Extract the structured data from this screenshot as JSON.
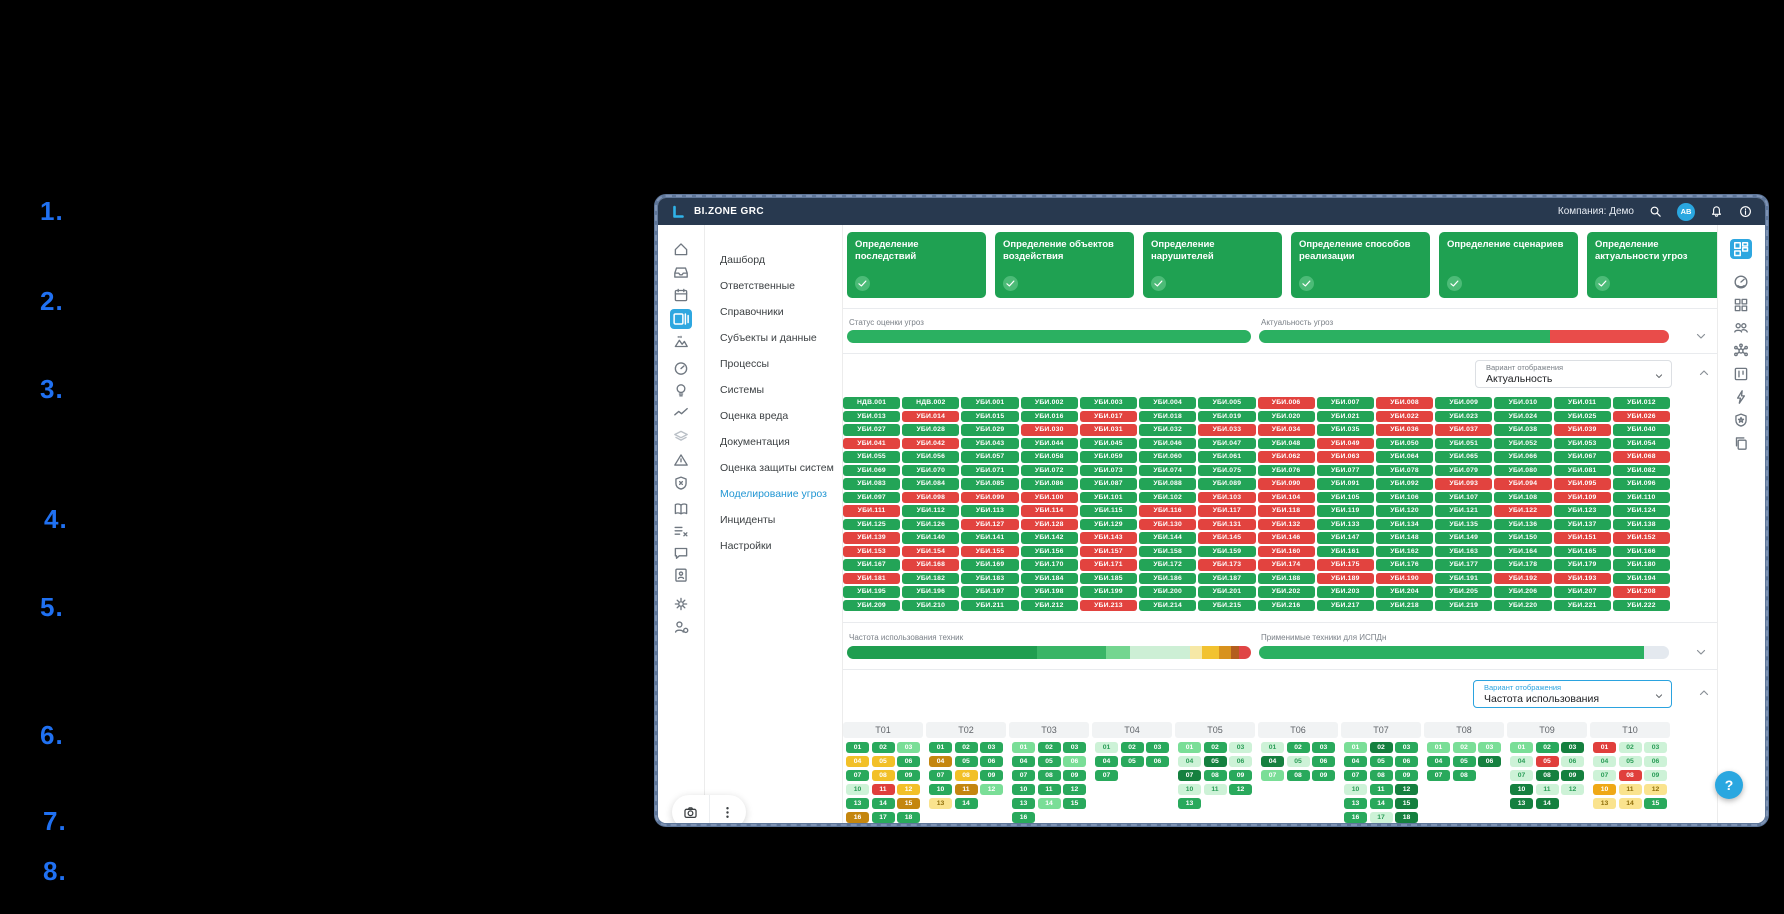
{
  "annotations": {
    "color": "#2071f2",
    "items": [
      "1.",
      "2.",
      "3.",
      "4.",
      "5.",
      "6.",
      "7.",
      "8."
    ]
  },
  "header": {
    "app_title": "BI.ZONE GRC",
    "company": "Компания: Демо",
    "avatar_initials": "AB",
    "icons": [
      "search",
      "avatar",
      "bell",
      "info"
    ]
  },
  "left_rail": {
    "active": "registry",
    "icons": [
      "home",
      "inbox",
      "calendar",
      "registry",
      "landscape",
      "gauge",
      "idea",
      "trend",
      "layers",
      "hazard",
      "shield-x",
      "book",
      "checklist",
      "chat",
      "report",
      "settings",
      "user-settings"
    ]
  },
  "right_rail": {
    "active": "dashboard",
    "icons": [
      "dashboard",
      "speed",
      "apps",
      "team",
      "network",
      "kanban",
      "lightning",
      "shield-star",
      "copy"
    ]
  },
  "nav": {
    "active": "Моделирование угроз",
    "items": [
      "Дашборд",
      "Ответственные",
      "Справочники",
      "Субъекты и данные",
      "Процессы",
      "Системы",
      "Оценка вреда",
      "Документация",
      "Оценка защиты систем",
      "Моделирование угроз",
      "Инциденты",
      "Настройки"
    ]
  },
  "stage_cards": [
    {
      "title": "Определение последствий",
      "done": true
    },
    {
      "title": "Определение объектов воздействия",
      "done": true
    },
    {
      "title": "Определение нарушителей",
      "done": true
    },
    {
      "title": "Определение способов реализации",
      "done": true
    },
    {
      "title": "Определение сценариев",
      "done": true
    },
    {
      "title": "Определение актуальности угроз",
      "done": true
    }
  ],
  "threat_section": {
    "status_bar": {
      "label": "Статус оценки угроз",
      "segments": [
        {
          "color": "#2bb061",
          "pct": 100
        }
      ]
    },
    "actuality_bar": {
      "label": "Актуальность угроз",
      "segments": [
        {
          "color": "#2bb061",
          "pct": 71
        },
        {
          "color": "#e94c4a",
          "pct": 29
        }
      ]
    },
    "display_option": {
      "label": "Вариант отображения",
      "value": "Актуальность"
    },
    "grid_columns": 14,
    "cells": [
      "НДВ.001",
      "НДВ.002",
      "УБИ.001",
      "УБИ.002",
      "УБИ.003",
      "УБИ.004",
      "УБИ.005",
      "УБИ.006",
      "УБИ.007",
      "УБИ.008",
      "УБИ.009",
      "УБИ.010",
      "УБИ.011",
      "УБИ.012",
      "УБИ.013",
      "УБИ.014",
      "УБИ.015",
      "УБИ.016",
      "УБИ.017",
      "УБИ.018",
      "УБИ.019",
      "УБИ.020",
      "УБИ.021",
      "УБИ.022",
      "УБИ.023",
      "УБИ.024",
      "УБИ.025",
      "УБИ.026",
      "УБИ.027",
      "УБИ.028",
      "УБИ.029",
      "УБИ.030",
      "УБИ.031",
      "УБИ.032",
      "УБИ.033",
      "УБИ.034",
      "УБИ.035",
      "УБИ.036",
      "УБИ.037",
      "УБИ.038",
      "УБИ.039",
      "УБИ.040",
      "УБИ.041",
      "УБИ.042",
      "УБИ.043",
      "УБИ.044",
      "УБИ.045",
      "УБИ.046",
      "УБИ.047",
      "УБИ.048",
      "УБИ.049",
      "УБИ.050",
      "УБИ.051",
      "УБИ.052",
      "УБИ.053",
      "УБИ.054",
      "УБИ.055",
      "УБИ.056",
      "УБИ.057",
      "УБИ.058",
      "УБИ.059",
      "УБИ.060",
      "УБИ.061",
      "УБИ.062",
      "УБИ.063",
      "УБИ.064",
      "УБИ.065",
      "УБИ.066",
      "УБИ.067",
      "УБИ.068",
      "УБИ.069",
      "УБИ.070",
      "УБИ.071",
      "УБИ.072",
      "УБИ.073",
      "УБИ.074",
      "УБИ.075",
      "УБИ.076",
      "УБИ.077",
      "УБИ.078",
      "УБИ.079",
      "УБИ.080",
      "УБИ.081",
      "УБИ.082",
      "УБИ.083",
      "УБИ.084",
      "УБИ.085",
      "УБИ.086",
      "УБИ.087",
      "УБИ.088",
      "УБИ.089",
      "УБИ.090",
      "УБИ.091",
      "УБИ.092",
      "УБИ.093",
      "УБИ.094",
      "УБИ.095",
      "УБИ.096",
      "УБИ.097",
      "УБИ.098",
      "УБИ.099",
      "УБИ.100",
      "УБИ.101",
      "УБИ.102",
      "УБИ.103",
      "УБИ.104",
      "УБИ.105",
      "УБИ.106",
      "УБИ.107",
      "УБИ.108",
      "УБИ.109",
      "УБИ.110",
      "УБИ.111",
      "УБИ.112",
      "УБИ.113",
      "УБИ.114",
      "УБИ.115",
      "УБИ.116",
      "УБИ.117",
      "УБИ.118",
      "УБИ.119",
      "УБИ.120",
      "УБИ.121",
      "УБИ.122",
      "УБИ.123",
      "УБИ.124",
      "УБИ.125",
      "УБИ.126",
      "УБИ.127",
      "УБИ.128",
      "УБИ.129",
      "УБИ.130",
      "УБИ.131",
      "УБИ.132",
      "УБИ.133",
      "УБИ.134",
      "УБИ.135",
      "УБИ.136",
      "УБИ.137",
      "УБИ.138",
      "УБИ.139",
      "УБИ.140",
      "УБИ.141",
      "УБИ.142",
      "УБИ.143",
      "УБИ.144",
      "УБИ.145",
      "УБИ.146",
      "УБИ.147",
      "УБИ.148",
      "УБИ.149",
      "УБИ.150",
      "УБИ.151",
      "УБИ.152",
      "УБИ.153",
      "УБИ.154",
      "УБИ.155",
      "УБИ.156",
      "УБИ.157",
      "УБИ.158",
      "УБИ.159",
      "УБИ.160",
      "УБИ.161",
      "УБИ.162",
      "УБИ.163",
      "УБИ.164",
      "УБИ.165",
      "УБИ.166",
      "УБИ.167",
      "УБИ.168",
      "УБИ.169",
      "УБИ.170",
      "УБИ.171",
      "УБИ.172",
      "УБИ.173",
      "УБИ.174",
      "УБИ.175",
      "УБИ.176",
      "УБИ.177",
      "УБИ.178",
      "УБИ.179",
      "УБИ.180",
      "УБИ.181",
      "УБИ.182",
      "УБИ.183",
      "УБИ.184",
      "УБИ.185",
      "УБИ.186",
      "УБИ.187",
      "УБИ.188",
      "УБИ.189",
      "УБИ.190",
      "УБИ.191",
      "УБИ.192",
      "УБИ.193",
      "УБИ.194",
      "УБИ.195",
      "УБИ.196",
      "УБИ.197",
      "УБИ.198",
      "УБИ.199",
      "УБИ.200",
      "УБИ.201",
      "УБИ.202",
      "УБИ.203",
      "УБИ.204",
      "УБИ.205",
      "УБИ.206",
      "УБИ.207",
      "УБИ.208",
      "УБИ.209",
      "УБИ.210",
      "УБИ.211",
      "УБИ.212",
      "УБИ.213",
      "УБИ.214",
      "УБИ.215",
      "УБИ.216",
      "УБИ.217",
      "УБИ.218",
      "УБИ.219",
      "УБИ.220",
      "УБИ.221",
      "УБИ.222"
    ],
    "red_cells": [
      "УБИ.006",
      "УБИ.008",
      "УБИ.014",
      "УБИ.017",
      "УБИ.022",
      "УБИ.026",
      "УБИ.030",
      "УБИ.031",
      "УБИ.033",
      "УБИ.034",
      "УБИ.036",
      "УБИ.037",
      "УБИ.039",
      "УБИ.041",
      "УБИ.042",
      "УБИ.049",
      "УБИ.062",
      "УБИ.063",
      "УБИ.068",
      "УБИ.090",
      "УБИ.093",
      "УБИ.094",
      "УБИ.095",
      "УБИ.098",
      "УБИ.099",
      "УБИ.100",
      "УБИ.103",
      "УБИ.104",
      "УБИ.109",
      "УБИ.111",
      "УБИ.114",
      "УБИ.116",
      "УБИ.117",
      "УБИ.118",
      "УБИ.122",
      "УБИ.127",
      "УБИ.128",
      "УБИ.130",
      "УБИ.131",
      "УБИ.132",
      "УБИ.139",
      "УБИ.143",
      "УБИ.145",
      "УБИ.146",
      "УБИ.151",
      "УБИ.152",
      "УБИ.153",
      "УБИ.154",
      "УБИ.155",
      "УБИ.157",
      "УБИ.160",
      "УБИ.168",
      "УБИ.171",
      "УБИ.173",
      "УБИ.174",
      "УБИ.175",
      "УБИ.181",
      "УБИ.189",
      "УБИ.190",
      "УБИ.192",
      "УБИ.193",
      "УБИ.208",
      "УБИ.213"
    ]
  },
  "technique_section": {
    "freq_bar": {
      "label": "Частота использования техник",
      "segments": [
        {
          "color": "#1f9e50",
          "pct": 47
        },
        {
          "color": "#39b566",
          "pct": 17
        },
        {
          "color": "#74d690",
          "pct": 6
        },
        {
          "color": "#cdefd5",
          "pct": 15
        },
        {
          "color": "#f6e8a6",
          "pct": 3
        },
        {
          "color": "#f2c230",
          "pct": 4
        },
        {
          "color": "#d8921e",
          "pct": 3
        },
        {
          "color": "#b35d1e",
          "pct": 2
        },
        {
          "color": "#e04545",
          "pct": 3
        }
      ]
    },
    "applicable_bar": {
      "label": "Применимые техники для ИСПДн",
      "segments": [
        {
          "color": "#2bb061",
          "pct": 94
        },
        {
          "color": "#e4e9ef",
          "pct": 6
        }
      ]
    },
    "display_option": {
      "label": "Вариант отображения",
      "value": "Частота использования"
    },
    "chip_colors": {
      "g": {
        "bg": "#29a95c",
        "fg": "#ffffff"
      },
      "dark": {
        "bg": "#15803f",
        "fg": "#ffffff"
      },
      "mint": {
        "bg": "#7ade97",
        "fg": "#ffffff"
      },
      "pale": {
        "bg": "#cdf2d7",
        "fg": "#2a9d57"
      },
      "y": {
        "bg": "#f2c028",
        "fg": "#ffffff"
      },
      "paleyellow": {
        "bg": "#fae38e",
        "fg": "#8f6e0a"
      },
      "ochre": {
        "bg": "#c4860f",
        "fg": "#ffffff"
      },
      "amber": {
        "bg": "#efa816",
        "fg": "#ffffff"
      },
      "red": {
        "bg": "#e03f3c",
        "fg": "#ffffff"
      }
    },
    "columns": [
      {
        "name": "T01",
        "chips": [
          [
            "01",
            "g"
          ],
          [
            "02",
            "g"
          ],
          [
            "03",
            "mint"
          ],
          [
            "04",
            "y"
          ],
          [
            "05",
            "y"
          ],
          [
            "06",
            "g"
          ],
          [
            "07",
            "g"
          ],
          [
            "08",
            "y"
          ],
          [
            "09",
            "g"
          ],
          [
            "10",
            "pale"
          ],
          [
            "11",
            "red"
          ],
          [
            "12",
            "y"
          ],
          [
            "13",
            "g"
          ],
          [
            "14",
            "g"
          ],
          [
            "15",
            "ochre"
          ],
          [
            "16",
            "ochre"
          ],
          [
            "17",
            "g"
          ],
          [
            "18",
            "g"
          ]
        ]
      },
      {
        "name": "T02",
        "chips": [
          [
            "01",
            "g"
          ],
          [
            "02",
            "g"
          ],
          [
            "03",
            "g"
          ],
          [
            "04",
            "ochre"
          ],
          [
            "05",
            "g"
          ],
          [
            "06",
            "g"
          ],
          [
            "07",
            "g"
          ],
          [
            "08",
            "y"
          ],
          [
            "09",
            "g"
          ],
          [
            "10",
            "g"
          ],
          [
            "11",
            "ochre"
          ],
          [
            "12",
            "mint"
          ],
          [
            "13",
            "paleyellow"
          ],
          [
            "14",
            "g"
          ]
        ]
      },
      {
        "name": "T03",
        "chips": [
          [
            "01",
            "mint"
          ],
          [
            "02",
            "g"
          ],
          [
            "03",
            "g"
          ],
          [
            "04",
            "g"
          ],
          [
            "05",
            "g"
          ],
          [
            "06",
            "mint"
          ],
          [
            "07",
            "g"
          ],
          [
            "08",
            "g"
          ],
          [
            "09",
            "g"
          ],
          [
            "10",
            "g"
          ],
          [
            "11",
            "g"
          ],
          [
            "12",
            "g"
          ],
          [
            "13",
            "g"
          ],
          [
            "14",
            "mint"
          ],
          [
            "15",
            "g"
          ],
          [
            "16",
            "g"
          ]
        ]
      },
      {
        "name": "T04",
        "chips": [
          [
            "01",
            "pale"
          ],
          [
            "02",
            "g"
          ],
          [
            "03",
            "g"
          ],
          [
            "04",
            "g"
          ],
          [
            "05",
            "g"
          ],
          [
            "06",
            "g"
          ],
          [
            "07",
            "g"
          ]
        ]
      },
      {
        "name": "T05",
        "chips": [
          [
            "01",
            "mint"
          ],
          [
            "02",
            "g"
          ],
          [
            "03",
            "pale"
          ],
          [
            "04",
            "pale"
          ],
          [
            "05",
            "dark"
          ],
          [
            "06",
            "pale"
          ],
          [
            "07",
            "dark"
          ],
          [
            "08",
            "g"
          ],
          [
            "09",
            "g"
          ],
          [
            "10",
            "pale"
          ],
          [
            "11",
            "pale"
          ],
          [
            "12",
            "g"
          ],
          [
            "13",
            "g"
          ]
        ]
      },
      {
        "name": "T06",
        "chips": [
          [
            "01",
            "pale"
          ],
          [
            "02",
            "g"
          ],
          [
            "03",
            "g"
          ],
          [
            "04",
            "dark"
          ],
          [
            "05",
            "pale"
          ],
          [
            "06",
            "g"
          ],
          [
            "07",
            "mint"
          ],
          [
            "08",
            "g"
          ],
          [
            "09",
            "g"
          ]
        ]
      },
      {
        "name": "T07",
        "chips": [
          [
            "01",
            "mint"
          ],
          [
            "02",
            "dark"
          ],
          [
            "03",
            "g"
          ],
          [
            "04",
            "g"
          ],
          [
            "05",
            "g"
          ],
          [
            "06",
            "g"
          ],
          [
            "07",
            "g"
          ],
          [
            "08",
            "g"
          ],
          [
            "09",
            "g"
          ],
          [
            "10",
            "pale"
          ],
          [
            "11",
            "g"
          ],
          [
            "12",
            "dark"
          ],
          [
            "13",
            "g"
          ],
          [
            "14",
            "g"
          ],
          [
            "15",
            "dark"
          ],
          [
            "16",
            "g"
          ],
          [
            "17",
            "pale"
          ],
          [
            "18",
            "dark"
          ]
        ]
      },
      {
        "name": "T08",
        "chips": [
          [
            "01",
            "mint"
          ],
          [
            "02",
            "mint"
          ],
          [
            "03",
            "mint"
          ],
          [
            "04",
            "g"
          ],
          [
            "05",
            "g"
          ],
          [
            "06",
            "dark"
          ],
          [
            "07",
            "g"
          ],
          [
            "08",
            "g"
          ]
        ]
      },
      {
        "name": "T09",
        "chips": [
          [
            "01",
            "mint"
          ],
          [
            "02",
            "g"
          ],
          [
            "03",
            "dark"
          ],
          [
            "04",
            "pale"
          ],
          [
            "05",
            "red"
          ],
          [
            "06",
            "pale"
          ],
          [
            "07",
            "pale"
          ],
          [
            "08",
            "dark"
          ],
          [
            "09",
            "dark"
          ],
          [
            "10",
            "dark"
          ],
          [
            "11",
            "pale"
          ],
          [
            "12",
            "pale"
          ],
          [
            "13",
            "dark"
          ],
          [
            "14",
            "dark"
          ]
        ]
      },
      {
        "name": "T10",
        "chips": [
          [
            "01",
            "red"
          ],
          [
            "02",
            "pale"
          ],
          [
            "03",
            "pale"
          ],
          [
            "04",
            "pale"
          ],
          [
            "05",
            "pale"
          ],
          [
            "06",
            "pale"
          ],
          [
            "07",
            "pale"
          ],
          [
            "08",
            "red"
          ],
          [
            "09",
            "pale"
          ],
          [
            "10",
            "amber"
          ],
          [
            "11",
            "paleyellow"
          ],
          [
            "12",
            "paleyellow"
          ],
          [
            "13",
            "paleyellow"
          ],
          [
            "14",
            "paleyellow"
          ],
          [
            "15",
            "g"
          ]
        ]
      }
    ]
  },
  "floating_buttons": [
    "camera-search",
    "more"
  ],
  "help": {
    "label": "?"
  }
}
